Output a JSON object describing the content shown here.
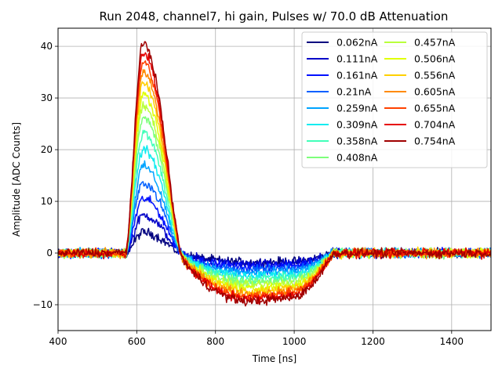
{
  "chart_data": {
    "type": "line",
    "title": "Run 2048, channel7, hi gain, Pulses w/ 70.0 dB Attenuation",
    "xlabel": "Time [ns]",
    "ylabel": "Amplitude [ADC Counts]",
    "xlim": [
      400,
      1500
    ],
    "ylim": [
      -15,
      43.5
    ],
    "xticks": [
      400,
      600,
      800,
      1000,
      1200,
      1400
    ],
    "yticks": [
      -10,
      0,
      10,
      20,
      30,
      40
    ],
    "xtick_labels": [
      "400",
      "600",
      "800",
      "1000",
      "1200",
      "1400"
    ],
    "ytick_labels": [
      "−10",
      "0",
      "10",
      "20",
      "30",
      "40"
    ],
    "grid": true,
    "legend_position": "top-right",
    "legend_columns": 2,
    "pulse_shape": {
      "rise_start_ns": 572,
      "peak_ns": 617,
      "zero_crossing_ns": 712,
      "undershoot_min_ns": 890,
      "recovery_ns": 1100
    },
    "series": [
      {
        "name": "0.062nA",
        "color": "#00007f",
        "peak": 4.0,
        "undershoot": -1.8
      },
      {
        "name": "0.111nA",
        "color": "#0000c8",
        "peak": 7.3,
        "undershoot": -2.2
      },
      {
        "name": "0.161nA",
        "color": "#0010ff",
        "peak": 10.5,
        "undershoot": -2.7
      },
      {
        "name": "0.21nA",
        "color": "#0060ff",
        "peak": 13.6,
        "undershoot": -3.3
      },
      {
        "name": "0.259nA",
        "color": "#00a4ff",
        "peak": 16.8,
        "undershoot": -3.9
      },
      {
        "name": "0.309nA",
        "color": "#10ecf0",
        "peak": 20.0,
        "undershoot": -4.5
      },
      {
        "name": "0.358nA",
        "color": "#41ffb9",
        "peak": 23.2,
        "undershoot": -5.1
      },
      {
        "name": "0.408nA",
        "color": "#7dff7a",
        "peak": 26.3,
        "undershoot": -5.7
      },
      {
        "name": "0.457nA",
        "color": "#b9ff3c",
        "peak": 28.4,
        "undershoot": -6.3
      },
      {
        "name": "0.506nA",
        "color": "#e0ff00",
        "peak": 30.6,
        "undershoot": -6.9
      },
      {
        "name": "0.556nA",
        "color": "#ffd000",
        "peak": 32.8,
        "undershoot": -7.4
      },
      {
        "name": "0.605nA",
        "color": "#ff8a00",
        "peak": 34.9,
        "undershoot": -7.9
      },
      {
        "name": "0.655nA",
        "color": "#ff4200",
        "peak": 36.9,
        "undershoot": -8.4
      },
      {
        "name": "0.704nA",
        "color": "#e60000",
        "peak": 38.8,
        "undershoot": -8.9
      },
      {
        "name": "0.754nA",
        "color": "#a00000",
        "peak": 40.5,
        "undershoot": -9.4
      }
    ]
  }
}
